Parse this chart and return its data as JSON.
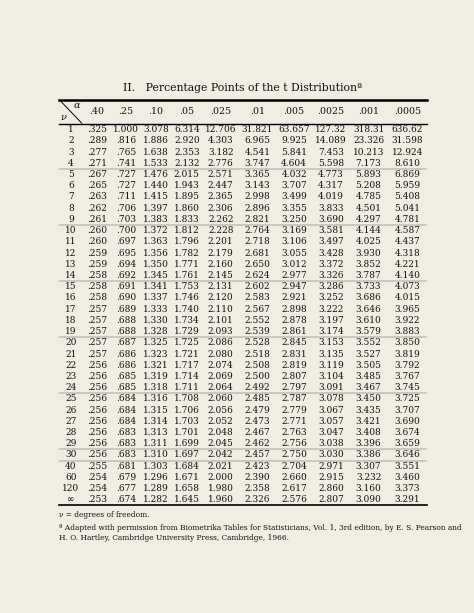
{
  "title": "II.   Percentage Points of the t Distributionª",
  "alpha_label": "α",
  "nu_label": "ν",
  "col_headers": [
    ".40",
    ".25",
    ".10",
    ".05",
    ".025",
    ".01",
    ".005",
    ".0025",
    ".001",
    ".0005"
  ],
  "footnote1": "ν = degrees of freedom.",
  "footnote2": "ª Adapted with permission from Biometrika Tables for Statisticians, Vol. 1, 3rd edition, by E. S. Pearson and H. O. Hartley, Cambridge University Press, Cambridge, 1966.",
  "rows": [
    [
      "1",
      ".325",
      "1.000",
      "3.078",
      "6.314",
      "12.706",
      "31.821",
      "63.657",
      "127.32",
      "318.31",
      "636.62"
    ],
    [
      "2",
      ".289",
      ".816",
      "1.886",
      "2.920",
      "4.303",
      "6.965",
      "9.925",
      "14.089",
      "23.326",
      "31.598"
    ],
    [
      "3",
      ".277",
      ".765",
      "1.638",
      "2.353",
      "3.182",
      "4.541",
      "5.841",
      "7.453",
      "10.213",
      "12.924"
    ],
    [
      "4",
      ".271",
      ".741",
      "1.533",
      "2.132",
      "2.776",
      "3.747",
      "4.604",
      "5.598",
      "7.173",
      "8.610"
    ],
    [
      "5",
      ".267",
      ".727",
      "1.476",
      "2.015",
      "2.571",
      "3.365",
      "4.032",
      "4.773",
      "5.893",
      "6.869"
    ],
    [
      "6",
      ".265",
      ".727",
      "1.440",
      "1.943",
      "2.447",
      "3.143",
      "3.707",
      "4.317",
      "5.208",
      "5.959"
    ],
    [
      "7",
      ".263",
      ".711",
      "1.415",
      "1.895",
      "2.365",
      "2.998",
      "3.499",
      "4.019",
      "4.785",
      "5.408"
    ],
    [
      "8",
      ".262",
      ".706",
      "1.397",
      "1.860",
      "2.306",
      "2.896",
      "3.355",
      "3.833",
      "4.501",
      "5.041"
    ],
    [
      "9",
      ".261",
      ".703",
      "1.383",
      "1.833",
      "2.262",
      "2.821",
      "3.250",
      "3.690",
      "4.297",
      "4.781"
    ],
    [
      "10",
      ".260",
      ".700",
      "1.372",
      "1.812",
      "2.228",
      "2.764",
      "3.169",
      "3.581",
      "4.144",
      "4.587"
    ],
    [
      "11",
      ".260",
      ".697",
      "1.363",
      "1.796",
      "2.201",
      "2.718",
      "3.106",
      "3.497",
      "4.025",
      "4.437"
    ],
    [
      "12",
      ".259",
      ".695",
      "1.356",
      "1.782",
      "2.179",
      "2.681",
      "3.055",
      "3.428",
      "3.930",
      "4.318"
    ],
    [
      "13",
      ".259",
      ".694",
      "1.350",
      "1.771",
      "2.160",
      "2.650",
      "3.012",
      "3.372",
      "3.852",
      "4.221"
    ],
    [
      "14",
      ".258",
      ".692",
      "1.345",
      "1.761",
      "2.145",
      "2.624",
      "2.977",
      "3.326",
      "3.787",
      "4.140"
    ],
    [
      "15",
      ".258",
      ".691",
      "1.341",
      "1.753",
      "2.131",
      "2.602",
      "2.947",
      "3.286",
      "3.733",
      "4.073"
    ],
    [
      "16",
      ".258",
      ".690",
      "1.337",
      "1.746",
      "2.120",
      "2.583",
      "2.921",
      "3.252",
      "3.686",
      "4.015"
    ],
    [
      "17",
      ".257",
      ".689",
      "1.333",
      "1.740",
      "2.110",
      "2.567",
      "2.898",
      "3.222",
      "3.646",
      "3.965"
    ],
    [
      "18",
      ".257",
      ".688",
      "1.330",
      "1.734",
      "2.101",
      "2.552",
      "2.878",
      "3.197",
      "3.610",
      "3.922"
    ],
    [
      "19",
      ".257",
      ".688",
      "1.328",
      "1.729",
      "2.093",
      "2.539",
      "2.861",
      "3.174",
      "3.579",
      "3.883"
    ],
    [
      "20",
      ".257",
      ".687",
      "1.325",
      "1.725",
      "2.086",
      "2.528",
      "2.845",
      "3.153",
      "3.552",
      "3.850"
    ],
    [
      "21",
      ".257",
      ".686",
      "1.323",
      "1.721",
      "2.080",
      "2.518",
      "2.831",
      "3.135",
      "3.527",
      "3.819"
    ],
    [
      "22",
      ".256",
      ".686",
      "1.321",
      "1.717",
      "2.074",
      "2.508",
      "2.819",
      "3.119",
      "3.505",
      "3.792"
    ],
    [
      "23",
      ".256",
      ".685",
      "1.319",
      "1.714",
      "2.069",
      "2.500",
      "2.807",
      "3.104",
      "3.485",
      "3.767"
    ],
    [
      "24",
      ".256",
      ".685",
      "1.318",
      "1.711",
      "2.064",
      "2.492",
      "2.797",
      "3.091",
      "3.467",
      "3.745"
    ],
    [
      "25",
      ".256",
      ".684",
      "1.316",
      "1.708",
      "2.060",
      "2.485",
      "2.787",
      "3.078",
      "3.450",
      "3.725"
    ],
    [
      "26",
      ".256",
      ".684",
      "1.315",
      "1.706",
      "2.056",
      "2.479",
      "2.779",
      "3.067",
      "3.435",
      "3.707"
    ],
    [
      "27",
      ".256",
      ".684",
      "1.314",
      "1.703",
      "2.052",
      "2.473",
      "2.771",
      "3.057",
      "3.421",
      "3.690"
    ],
    [
      "28",
      ".256",
      ".683",
      "1.313",
      "1.701",
      "2.048",
      "2.467",
      "2.763",
      "3.047",
      "3.408",
      "3.674"
    ],
    [
      "29",
      ".256",
      ".683",
      "1.311",
      "1.699",
      "2.045",
      "2.462",
      "2.756",
      "3.038",
      "3.396",
      "3.659"
    ],
    [
      "30",
      ".256",
      ".683",
      "1.310",
      "1.697",
      "2.042",
      "2.457",
      "2.750",
      "3.030",
      "3.386",
      "3.646"
    ],
    [
      "40",
      ".255",
      ".681",
      "1.303",
      "1.684",
      "2.021",
      "2.423",
      "2.704",
      "2.971",
      "3.307",
      "3.551"
    ],
    [
      "60",
      ".254",
      ".679",
      "1.296",
      "1.671",
      "2.000",
      "2.390",
      "2.660",
      "2.915",
      "3.232",
      "3.460"
    ],
    [
      "120",
      ".254",
      ".677",
      "1.289",
      "1.658",
      "1.980",
      "2.358",
      "2.617",
      "2.860",
      "3.160",
      "3.373"
    ],
    [
      "∞",
      ".253",
      ".674",
      "1.282",
      "1.645",
      "1.960",
      "2.326",
      "2.576",
      "2.807",
      "3.090",
      "3.291"
    ]
  ],
  "group_separators_after": [
    3,
    8,
    13,
    18,
    23,
    28,
    29
  ],
  "bg_color": "#f2ede3",
  "text_color": "#111111",
  "title_fontsize": 7.8,
  "header_fontsize": 6.8,
  "cell_fontsize": 6.5
}
